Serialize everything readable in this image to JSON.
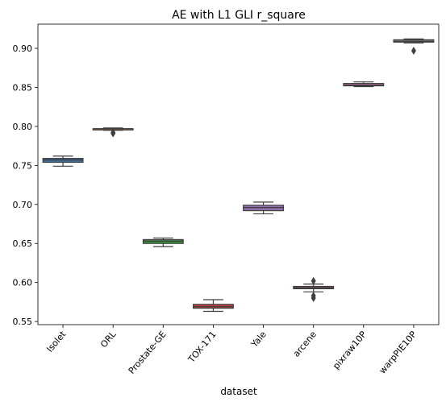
{
  "chart_data": {
    "type": "box",
    "title": "AE with L1 GLI r_square",
    "xlabel": "dataset",
    "ylabel": "",
    "ylim": [
      0.546,
      0.931
    ],
    "yticks": [
      "0.55",
      "0.60",
      "0.65",
      "0.70",
      "0.75",
      "0.80",
      "0.85",
      "0.90"
    ],
    "grid": false,
    "categories": [
      "Isolet",
      "ORL",
      "Prostate-GE",
      "TOX-171",
      "Yale",
      "arcene",
      "pixraw10P",
      "warpPIE10P"
    ],
    "boxes": [
      {
        "category": "Isolet",
        "color": "#3a74a8",
        "whisker_low": 0.749,
        "q1": 0.754,
        "median": 0.757,
        "q3": 0.759,
        "whisker_high": 0.762,
        "outliers": []
      },
      {
        "category": "ORL",
        "color": "#e1812c",
        "whisker_low": 0.795,
        "q1": 0.796,
        "median": 0.797,
        "q3": 0.797,
        "whisker_high": 0.798,
        "outliers": [
          0.792,
          0.791
        ]
      },
      {
        "category": "Prostate-GE",
        "color": "#3a923a",
        "whisker_low": 0.646,
        "q1": 0.65,
        "median": 0.653,
        "q3": 0.655,
        "whisker_high": 0.657,
        "outliers": []
      },
      {
        "category": "TOX-171",
        "color": "#c03d3e",
        "whisker_low": 0.563,
        "q1": 0.567,
        "median": 0.569,
        "q3": 0.572,
        "whisker_high": 0.578,
        "outliers": []
      },
      {
        "category": "Yale",
        "color": "#9372b2",
        "whisker_low": 0.688,
        "q1": 0.692,
        "median": 0.696,
        "q3": 0.699,
        "whisker_high": 0.703,
        "outliers": []
      },
      {
        "category": "arcene",
        "color": "#845b53",
        "whisker_low": 0.588,
        "q1": 0.592,
        "median": 0.593,
        "q3": 0.595,
        "whisker_high": 0.598,
        "outliers": [
          0.602,
          0.583,
          0.58
        ]
      },
      {
        "category": "pixraw10P",
        "color": "#d684bd",
        "whisker_low": 0.851,
        "q1": 0.852,
        "median": 0.853,
        "q3": 0.855,
        "whisker_high": 0.857,
        "outliers": []
      },
      {
        "category": "warpPIE10P",
        "color": "#7f7f7f",
        "whisker_low": 0.907,
        "q1": 0.908,
        "median": 0.909,
        "q3": 0.911,
        "whisker_high": 0.912,
        "outliers": [
          0.897
        ]
      }
    ]
  }
}
